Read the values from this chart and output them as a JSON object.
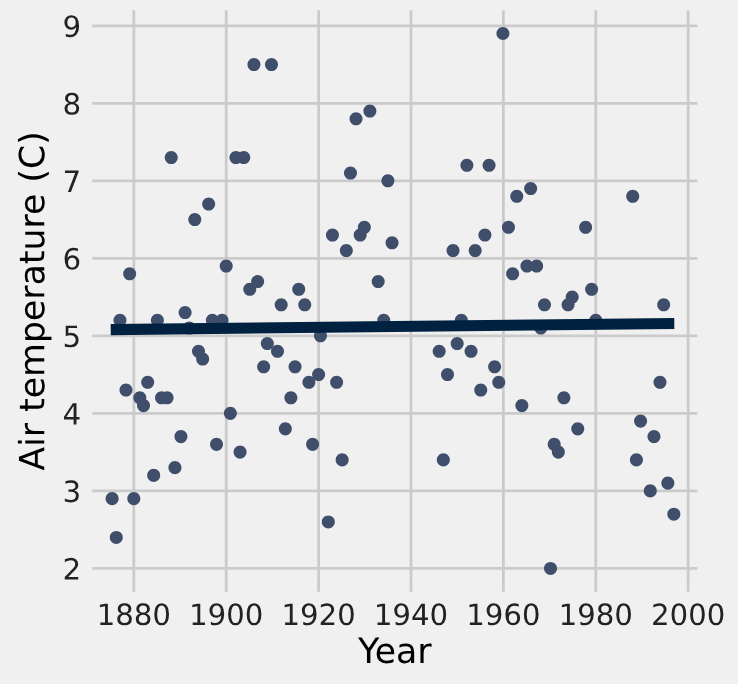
{
  "chart_data": {
    "type": "scatter",
    "xlabel": "Year",
    "ylabel": "Air temperature (C)",
    "xlim": [
      1871,
      2002
    ],
    "ylim": [
      1.7,
      9.2
    ],
    "xticks": [
      1880,
      1900,
      1920,
      1940,
      1960,
      1980,
      2000
    ],
    "yticks": [
      2,
      3,
      4,
      5,
      6,
      7,
      8,
      9
    ],
    "grid": true,
    "series": [
      {
        "marker": "circle",
        "color": "#3f4f6b",
        "x": [
          1875.3,
          1876.2,
          1877,
          1879.1,
          1878.3,
          1880,
          1881.3,
          1882.1,
          1883,
          1884.3,
          1886,
          1887.2,
          1885.1,
          1888.1,
          1890.2,
          1888.9,
          1891.1,
          1892,
          1893.2,
          1894,
          1894.9,
          1896.2,
          1897,
          1899.1,
          1897.9,
          1900,
          1900.9,
          1902.1,
          1903.8,
          1903,
          1905.1,
          1906.8,
          1906,
          1909.8,
          1908.1,
          1908.9,
          1911.1,
          1911.9,
          1912.8,
          1914,
          1914.9,
          1915.7,
          1917,
          1917.9,
          1918.7,
          1920,
          1920.4,
          1922.1,
          1923,
          1923.9,
          1925.1,
          1926,
          1926.9,
          1928.1,
          1929,
          1929.9,
          1931.1,
          1932.9,
          1934.1,
          1935,
          1935.9,
          1946.1,
          1947,
          1947.9,
          1949.1,
          1950,
          1950.9,
          1952.1,
          1953,
          1953.9,
          1955.1,
          1956,
          1956.9,
          1958.1,
          1959,
          1959.9,
          1961.1,
          1962,
          1962.9,
          1964,
          1965.9,
          1965.1,
          1967.2,
          1968.9,
          1968.1,
          1970.2,
          1971,
          1971.9,
          1973.1,
          1974,
          1974.9,
          1976.1,
          1977.8,
          1979.1,
          1980,
          1988,
          1988.8,
          1989.7,
          1991.8,
          1992.6,
          1993.9,
          1994.7,
          1995.6,
          1996.9
        ],
        "values": [
          2.9,
          2.4,
          5.2,
          5.8,
          4.3,
          2.9,
          4.2,
          4.1,
          4.4,
          3.2,
          4.2,
          4.2,
          5.2,
          7.3,
          3.7,
          3.3,
          5.3,
          5.1,
          6.5,
          4.8,
          4.7,
          6.7,
          5.2,
          5.2,
          3.6,
          5.9,
          4.0,
          7.3,
          7.3,
          3.5,
          5.6,
          5.7,
          8.5,
          8.5,
          4.6,
          4.9,
          4.8,
          5.4,
          3.8,
          4.2,
          4.6,
          5.6,
          5.4,
          4.4,
          3.6,
          4.5,
          5.0,
          2.6,
          6.3,
          4.4,
          3.4,
          6.1,
          7.1,
          7.8,
          6.3,
          6.4,
          7.9,
          5.7,
          5.2,
          7.0,
          6.2,
          4.8,
          3.4,
          4.5,
          6.1,
          4.9,
          5.2,
          7.2,
          4.8,
          6.1,
          4.3,
          6.3,
          7.2,
          4.6,
          4.4,
          8.9,
          6.4,
          5.8,
          6.8,
          4.1,
          6.9,
          5.9,
          5.9,
          5.4,
          5.1,
          2.0,
          3.6,
          3.5,
          4.2,
          5.4,
          5.5,
          3.8,
          6.4,
          5.6,
          5.2,
          6.8,
          3.4,
          3.9,
          3.0,
          3.7,
          4.4,
          5.4,
          3.1,
          2.7
        ]
      },
      {
        "type": "line",
        "marker": "none",
        "color": "#012140",
        "x": [
          1875,
          1997
        ],
        "values": [
          5.08,
          5.16
        ]
      }
    ]
  }
}
